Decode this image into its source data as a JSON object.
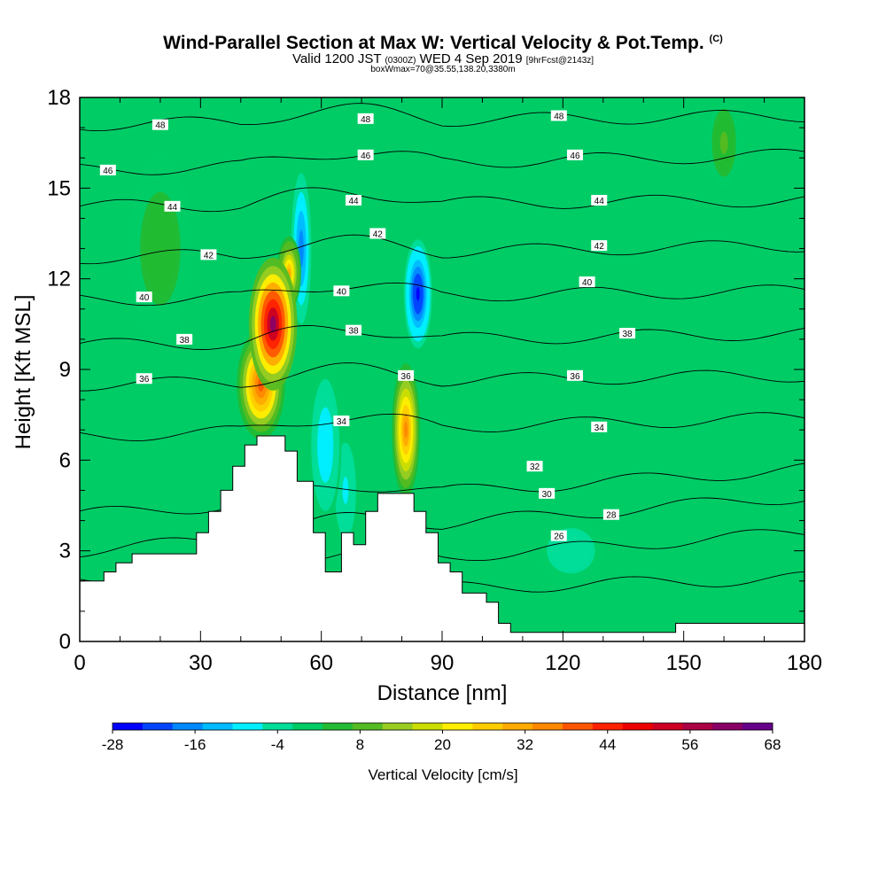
{
  "title": {
    "main": "Wind-Parallel Section at Max W: Vertical Velocity & Pot.Temp.",
    "main_mark": "(C)",
    "valid_prefix": "Valid 1200 JST",
    "valid_utc": "(0300Z)",
    "valid_date": "WED 4 Sep 2019",
    "forecast": "[9hrFcst@2143z]",
    "box": "boxWmax=70@35.55,138.20,3380m"
  },
  "chart_data": {
    "type": "heatmap",
    "xlabel": "Distance [nm]",
    "ylabel": "Height [Kft MSL]",
    "xlim": [
      0,
      180
    ],
    "ylim": [
      0,
      18
    ],
    "x_ticks": [
      "0",
      "30",
      "60",
      "90",
      "120",
      "150",
      "180"
    ],
    "y_ticks": [
      "0",
      "3",
      "6",
      "9",
      "12",
      "15",
      "18"
    ],
    "colorbar": {
      "label": "Vertical Velocity [cm/s]",
      "ticks": [
        "-28",
        "-16",
        "-4",
        "8",
        "20",
        "32",
        "44",
        "56",
        "68"
      ],
      "colors": [
        "#0000ff",
        "#0044ff",
        "#0088ff",
        "#00bbff",
        "#00eeff",
        "#00dd99",
        "#00cc66",
        "#22bb33",
        "#55bb22",
        "#99cc22",
        "#ccdd00",
        "#ffee00",
        "#ffcc00",
        "#ffaa00",
        "#ff8800",
        "#ff5500",
        "#ff2200",
        "#ee0000",
        "#cc0022",
        "#aa0044",
        "#880066",
        "#660088"
      ]
    },
    "background_value_cm_s": 0,
    "vertical_velocity_features": [
      {
        "x": 48,
        "y": 10.5,
        "peak": 60,
        "rx": 6,
        "ry": 2.2
      },
      {
        "x": 45,
        "y": 8.5,
        "peak": 40,
        "rx": 6,
        "ry": 1.8
      },
      {
        "x": 52,
        "y": 12.2,
        "peak": 30,
        "rx": 3,
        "ry": 1.2
      },
      {
        "x": 81,
        "y": 7.0,
        "peak": 36,
        "rx": 3.5,
        "ry": 2.2
      },
      {
        "x": 84,
        "y": 11.5,
        "peak": -26,
        "rx": 3.5,
        "ry": 1.8
      },
      {
        "x": 55,
        "y": 13.0,
        "peak": -18,
        "rx": 2.5,
        "ry": 2.5
      },
      {
        "x": 61,
        "y": 6.5,
        "peak": -10,
        "rx": 4,
        "ry": 2.5
      },
      {
        "x": 66,
        "y": 5.0,
        "peak": -8,
        "rx": 3,
        "ry": 1.8
      },
      {
        "x": 122,
        "y": 3.0,
        "peak": -6,
        "rx": 8,
        "ry": 1.0
      },
      {
        "x": 160,
        "y": 16.5,
        "peak": 8,
        "rx": 4,
        "ry": 1.5
      },
      {
        "x": 20,
        "y": 13.0,
        "peak": 6,
        "rx": 8,
        "ry": 3
      }
    ],
    "terrain": [
      [
        0,
        2
      ],
      [
        6,
        2
      ],
      [
        6,
        2.3
      ],
      [
        9,
        2.3
      ],
      [
        9,
        2.6
      ],
      [
        13,
        2.6
      ],
      [
        13,
        2.9
      ],
      [
        29,
        2.9
      ],
      [
        29,
        3.6
      ],
      [
        32,
        3.6
      ],
      [
        32,
        4.3
      ],
      [
        35,
        4.3
      ],
      [
        35,
        5.0
      ],
      [
        38,
        5.0
      ],
      [
        38,
        5.8
      ],
      [
        41,
        5.8
      ],
      [
        41,
        6.5
      ],
      [
        44,
        6.5
      ],
      [
        44,
        6.8
      ],
      [
        51,
        6.8
      ],
      [
        51,
        6.3
      ],
      [
        54,
        6.3
      ],
      [
        54,
        5.3
      ],
      [
        58,
        5.3
      ],
      [
        58,
        3.6
      ],
      [
        61,
        3.6
      ],
      [
        61,
        2.3
      ],
      [
        65,
        2.3
      ],
      [
        65,
        3.6
      ],
      [
        68,
        3.6
      ],
      [
        68,
        3.2
      ],
      [
        71,
        3.2
      ],
      [
        71,
        4.3
      ],
      [
        74,
        4.3
      ],
      [
        74,
        4.9
      ],
      [
        83,
        4.9
      ],
      [
        83,
        4.3
      ],
      [
        86,
        4.3
      ],
      [
        86,
        3.6
      ],
      [
        89,
        3.6
      ],
      [
        89,
        2.6
      ],
      [
        92,
        2.6
      ],
      [
        92,
        2.3
      ],
      [
        95,
        2.3
      ],
      [
        95,
        1.6
      ],
      [
        101,
        1.6
      ],
      [
        101,
        1.3
      ],
      [
        104,
        1.3
      ],
      [
        104,
        0.6
      ],
      [
        107,
        0.6
      ],
      [
        107,
        0.3
      ],
      [
        148,
        0.3
      ],
      [
        148,
        0.6
      ],
      [
        180,
        0.6
      ]
    ],
    "theta_contours": [
      {
        "value": 26,
        "y_left": 1.4,
        "y_right": 2.1
      },
      {
        "value": 28,
        "y_left": 2.0,
        "y_right": 3.6
      },
      {
        "value": 30,
        "y_left": 3.0,
        "y_right": 4.8
      },
      {
        "value": 32,
        "y_left": 4.2,
        "y_right": 5.7
      },
      {
        "value": 34,
        "y_left": 6.8,
        "y_right": 7.4
      },
      {
        "value": 36,
        "y_left": 8.5,
        "y_right": 8.8
      },
      {
        "value": 38,
        "y_left": 9.8,
        "y_right": 10.2
      },
      {
        "value": 40,
        "y_left": 11.3,
        "y_right": 11.6
      },
      {
        "value": 42,
        "y_left": 12.7,
        "y_right": 13.1
      },
      {
        "value": 44,
        "y_left": 14.4,
        "y_right": 14.6
      },
      {
        "value": 46,
        "y_left": 15.6,
        "y_right": 16.1
      },
      {
        "value": 48,
        "y_left": 17.1,
        "y_right": 17.4
      }
    ],
    "theta_labels": [
      {
        "text": "48",
        "x": 20,
        "y": 17.1
      },
      {
        "text": "48",
        "x": 71,
        "y": 17.3
      },
      {
        "text": "48",
        "x": 119,
        "y": 17.4
      },
      {
        "text": "46",
        "x": 7,
        "y": 15.6
      },
      {
        "text": "46",
        "x": 71,
        "y": 16.1
      },
      {
        "text": "46",
        "x": 123,
        "y": 16.1
      },
      {
        "text": "44",
        "x": 23,
        "y": 14.4
      },
      {
        "text": "44",
        "x": 68,
        "y": 14.6
      },
      {
        "text": "44",
        "x": 129,
        "y": 14.6
      },
      {
        "text": "42",
        "x": 32,
        "y": 12.8
      },
      {
        "text": "42",
        "x": 74,
        "y": 13.5
      },
      {
        "text": "42",
        "x": 129,
        "y": 13.1
      },
      {
        "text": "40",
        "x": 16,
        "y": 11.4
      },
      {
        "text": "40",
        "x": 65,
        "y": 11.6
      },
      {
        "text": "40",
        "x": 126,
        "y": 11.9
      },
      {
        "text": "38",
        "x": 26,
        "y": 10.0
      },
      {
        "text": "38",
        "x": 68,
        "y": 10.3
      },
      {
        "text": "38",
        "x": 136,
        "y": 10.2
      },
      {
        "text": "36",
        "x": 16,
        "y": 8.7
      },
      {
        "text": "36",
        "x": 81,
        "y": 8.8
      },
      {
        "text": "36",
        "x": 123,
        "y": 8.8
      },
      {
        "text": "34",
        "x": 65,
        "y": 7.3
      },
      {
        "text": "34",
        "x": 129,
        "y": 7.1
      },
      {
        "text": "32",
        "x": 113,
        "y": 5.8
      },
      {
        "text": "30",
        "x": 116,
        "y": 4.9
      },
      {
        "text": "28",
        "x": 132,
        "y": 4.2
      },
      {
        "text": "26",
        "x": 119,
        "y": 3.5
      }
    ]
  }
}
